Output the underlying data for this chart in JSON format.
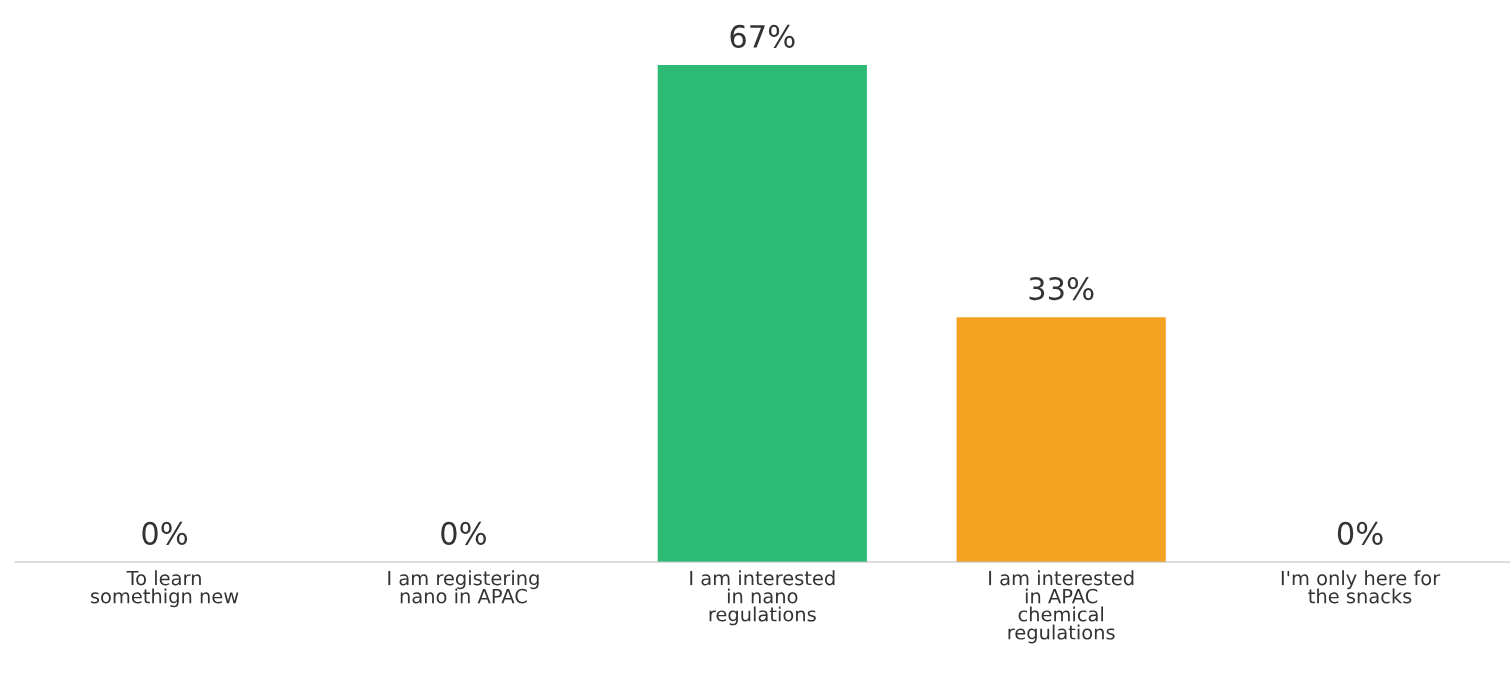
{
  "chart_data": {
    "type": "bar",
    "categories": [
      "To learn\nsomethign new",
      "I am registering\nnano in APAC",
      "I am interested\nin nano\nregulations",
      "I am interested\nin APAC\nchemical\nregulations",
      "I'm only here for\nthe snacks"
    ],
    "values": [
      0,
      0,
      67,
      33,
      0
    ],
    "colors": [
      "#2dba74",
      "#f4a321",
      "#2dba74",
      "#f4a321",
      "#2dba74"
    ],
    "value_labels": [
      "0%",
      "0%",
      "67%",
      "33%",
      "0%"
    ],
    "grid": false,
    "legend": false
  }
}
